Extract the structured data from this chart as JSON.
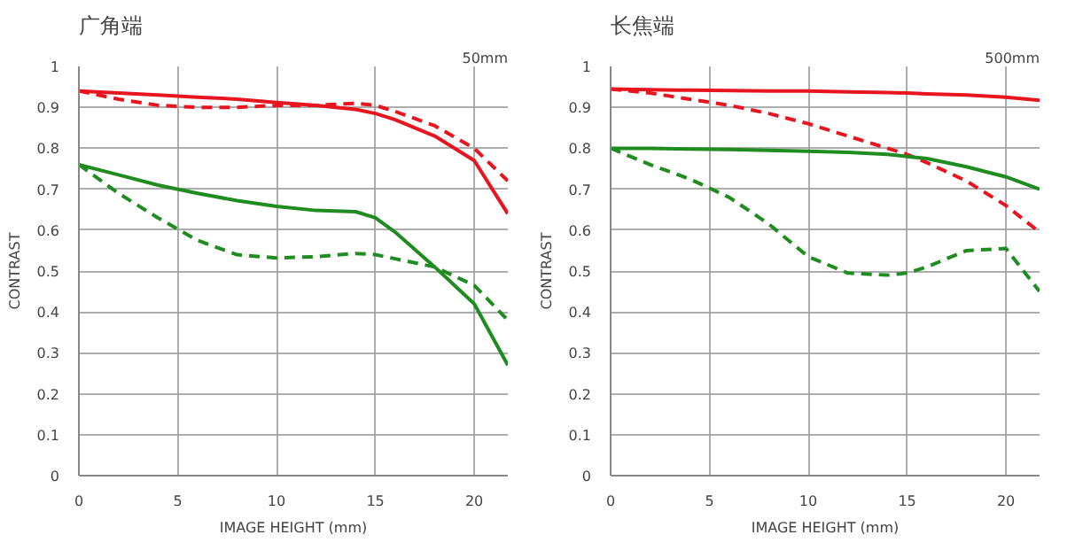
{
  "chart_data": [
    {
      "type": "line",
      "title": "广角端",
      "annotations": [
        "50mm"
      ],
      "xlabel": "IMAGE HEIGHT (mm)",
      "ylabel": "CONTRAST",
      "x": [
        0,
        2,
        4,
        6,
        8,
        10,
        12,
        14,
        15,
        16,
        18,
        20,
        21.7
      ],
      "xlim": [
        0,
        21.7
      ],
      "xticks": [
        0,
        5,
        10,
        15,
        20
      ],
      "ylim": [
        0,
        1
      ],
      "yticks": [
        0,
        0.1,
        0.2,
        0.3,
        0.4,
        0.5,
        0.6,
        0.7,
        0.8,
        0.9,
        1
      ],
      "grid": true,
      "series": [
        {
          "color": "#e8141e",
          "line_style": "solid",
          "values": [
            0.94,
            0.935,
            0.93,
            0.925,
            0.92,
            0.912,
            0.905,
            0.895,
            0.885,
            0.87,
            0.83,
            0.77,
            0.64
          ]
        },
        {
          "color": "#e8141e",
          "line_style": "dashed",
          "values": [
            0.94,
            0.92,
            0.905,
            0.9,
            0.9,
            0.905,
            0.905,
            0.91,
            0.905,
            0.89,
            0.855,
            0.8,
            0.72
          ]
        },
        {
          "color": "#1e8c1e",
          "line_style": "solid",
          "values": [
            0.76,
            0.735,
            0.71,
            0.69,
            0.672,
            0.658,
            0.648,
            0.645,
            0.63,
            0.595,
            0.51,
            0.42,
            0.27
          ]
        },
        {
          "color": "#1e8c1e",
          "line_style": "dashed",
          "values": [
            0.76,
            0.69,
            0.63,
            0.575,
            0.54,
            0.532,
            0.535,
            0.543,
            0.54,
            0.53,
            0.51,
            0.465,
            0.38
          ]
        }
      ]
    },
    {
      "type": "line",
      "title": "长焦端",
      "annotations": [
        "500mm"
      ],
      "xlabel": "IMAGE HEIGHT (mm)",
      "ylabel": "CONTRAST",
      "x": [
        0,
        2,
        4,
        6,
        8,
        10,
        12,
        14,
        15,
        16,
        18,
        20,
        21.7
      ],
      "xlim": [
        0,
        21.7
      ],
      "xticks": [
        0,
        5,
        10,
        15,
        20
      ],
      "ylim": [
        0,
        1
      ],
      "yticks": [
        0,
        0.1,
        0.2,
        0.3,
        0.4,
        0.5,
        0.6,
        0.7,
        0.8,
        0.9,
        1
      ],
      "grid": true,
      "series": [
        {
          "color": "#e8141e",
          "line_style": "solid",
          "values": [
            0.945,
            0.943,
            0.942,
            0.941,
            0.94,
            0.94,
            0.938,
            0.936,
            0.935,
            0.933,
            0.93,
            0.925,
            0.917
          ]
        },
        {
          "color": "#e8141e",
          "line_style": "dashed",
          "values": [
            0.945,
            0.935,
            0.92,
            0.905,
            0.885,
            0.86,
            0.83,
            0.8,
            0.785,
            0.765,
            0.72,
            0.66,
            0.595
          ]
        },
        {
          "color": "#1e8c1e",
          "line_style": "solid",
          "values": [
            0.8,
            0.8,
            0.798,
            0.797,
            0.795,
            0.793,
            0.79,
            0.785,
            0.78,
            0.775,
            0.755,
            0.73,
            0.7
          ]
        },
        {
          "color": "#1e8c1e",
          "line_style": "dashed",
          "values": [
            0.8,
            0.76,
            0.725,
            0.68,
            0.615,
            0.535,
            0.495,
            0.49,
            0.495,
            0.51,
            0.55,
            0.555,
            0.45
          ]
        }
      ]
    }
  ]
}
